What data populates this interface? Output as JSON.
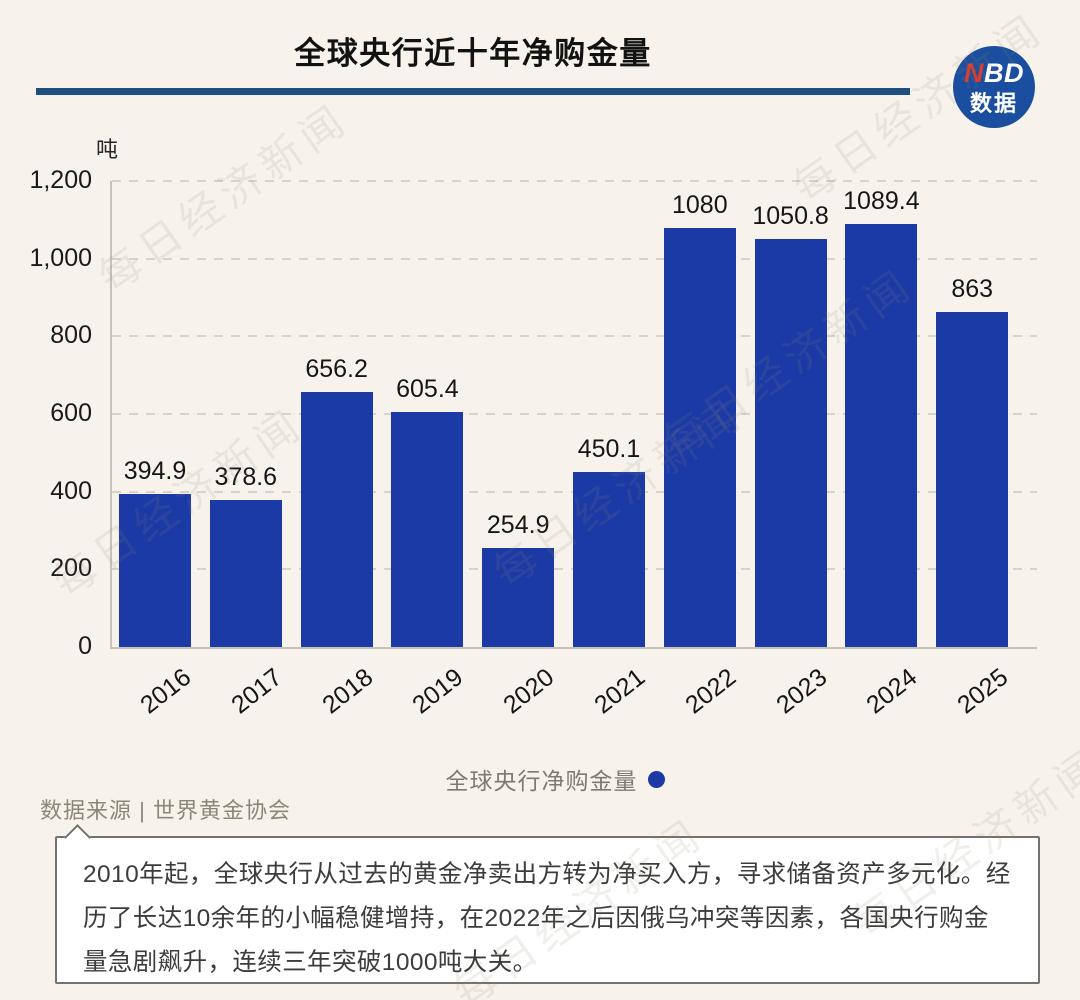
{
  "header": {
    "title": "全球央行近十年净购金量",
    "logo": {
      "n": "N",
      "bd": "BD",
      "sub": "数据"
    }
  },
  "chart_data": {
    "type": "bar",
    "title": "全球央行近十年净购金量",
    "unit": "吨",
    "categories": [
      "2016",
      "2017",
      "2018",
      "2019",
      "2020",
      "2021",
      "2022",
      "2023",
      "2024",
      "2025"
    ],
    "values": [
      394.9,
      378.6,
      656.2,
      605.4,
      254.9,
      450.1,
      1080,
      1050.8,
      1089.4,
      863
    ],
    "value_labels": [
      "394.9",
      "378.6",
      "656.2",
      "605.4",
      "254.9",
      "450.1",
      "1080",
      "1050.8",
      "1089.4",
      "863"
    ],
    "ylim": [
      0,
      1200
    ],
    "yticks": [
      {
        "value": 0,
        "label": "0"
      },
      {
        "value": 200,
        "label": "200"
      },
      {
        "value": 400,
        "label": "400"
      },
      {
        "value": 600,
        "label": "600"
      },
      {
        "value": 800,
        "label": "800"
      },
      {
        "value": 1000,
        "label": "1,000"
      },
      {
        "value": 1200,
        "label": "1,200"
      }
    ],
    "grid": "dashed-horizontal",
    "legend_position": "bottom",
    "bar_color": "#1c3aa5"
  },
  "legend": {
    "label": "全球央行净购金量"
  },
  "source": {
    "text": "数据来源 | 世界黄金协会"
  },
  "note": {
    "text": "2010年起，全球央行从过去的黄金净卖出方转为净买入方，寻求储备资产多元化。经历了长达10余年的小幅稳健增持，在2022年之后因俄乌冲突等因素，各国央行购金量急剧飙升，连续三年突破1000吨大关。"
  },
  "watermark": {
    "text": "每日经济新闻"
  },
  "colors": {
    "background": "#f7f3ec",
    "bar": "#1c3aa5",
    "title_rule": "#1d4e7e",
    "logo_background": "#1b4e9e",
    "logo_n_red": "#d93a2b"
  }
}
